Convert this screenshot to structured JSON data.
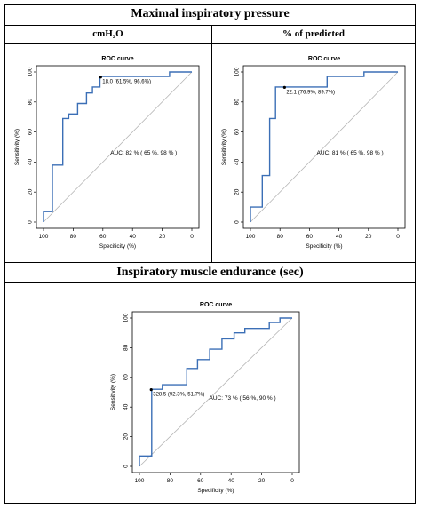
{
  "headers": {
    "section1_title": "Maximal inspiratory pressure",
    "col1_title": "cmH₂O",
    "col2_title": "% of predicted",
    "section2_title": "Inspiratory muscle endurance (sec)"
  },
  "chart_data": [
    {
      "type": "line",
      "title": "ROC curve",
      "xlabel": "Specificity (%)",
      "ylabel": "Sensitivity (%)",
      "xlim": [
        100,
        0
      ],
      "ylim": [
        0,
        100
      ],
      "xticks": [
        100,
        80,
        60,
        40,
        20,
        0
      ],
      "yticks": [
        0,
        20,
        40,
        60,
        80,
        100
      ],
      "series": [
        {
          "color": "#3b6fb6",
          "x": [
            100,
            100,
            94,
            94,
            87,
            87,
            83,
            83,
            77,
            77,
            71,
            71,
            67,
            67,
            62,
            62,
            15,
            15,
            0
          ],
          "y": [
            0,
            7,
            7,
            38,
            38,
            69,
            69,
            72,
            72,
            79,
            79,
            86,
            86,
            90,
            90,
            97,
            97,
            100,
            100
          ]
        }
      ],
      "reference_line": true,
      "threshold": {
        "x": 61.5,
        "y": 96.6,
        "label": "18.0 (61.5%, 96.6%)"
      },
      "auc_label": "AUC:  82 % ( 65 %,  98 % )"
    },
    {
      "type": "line",
      "title": "ROC curve",
      "xlabel": "Specificity (%)",
      "ylabel": "Sensitivity (%)",
      "xlim": [
        100,
        0
      ],
      "ylim": [
        0,
        100
      ],
      "xticks": [
        100,
        80,
        60,
        40,
        20,
        0
      ],
      "yticks": [
        0,
        20,
        40,
        60,
        80,
        100
      ],
      "series": [
        {
          "color": "#3b6fb6",
          "x": [
            100,
            100,
            92,
            92,
            87,
            87,
            83,
            83,
            77,
            77,
            62,
            62,
            48,
            48,
            23,
            23,
            0
          ],
          "y": [
            0,
            10,
            10,
            31,
            31,
            69,
            69,
            90,
            90,
            90,
            90,
            90,
            90,
            97,
            97,
            100,
            100
          ]
        }
      ],
      "reference_line": true,
      "threshold": {
        "x": 76.9,
        "y": 89.7,
        "label": "22.1 (76.9%, 89.7%)"
      },
      "auc_label": "AUC:  81 % ( 65 %,  98 % )"
    },
    {
      "type": "line",
      "title": "ROC curve",
      "xlabel": "Specificity (%)",
      "ylabel": "Sensitivity (%)",
      "xlim": [
        100,
        0
      ],
      "ylim": [
        0,
        100
      ],
      "xticks": [
        100,
        80,
        60,
        40,
        20,
        0
      ],
      "yticks": [
        0,
        20,
        40,
        60,
        80,
        100
      ],
      "series": [
        {
          "color": "#3b6fb6",
          "x": [
            100,
            100,
            92,
            92,
            85,
            85,
            69,
            69,
            62,
            62,
            54,
            54,
            46,
            46,
            38,
            38,
            31,
            31,
            15,
            15,
            8,
            8,
            0
          ],
          "y": [
            0,
            7,
            7,
            52,
            52,
            55,
            55,
            66,
            66,
            72,
            72,
            79,
            79,
            86,
            86,
            90,
            90,
            93,
            93,
            97,
            97,
            100,
            100
          ]
        }
      ],
      "reference_line": true,
      "threshold": {
        "x": 92.3,
        "y": 51.7,
        "label": "328.5 (92.3%, 51.7%)"
      },
      "auc_label": "AUC:  73 % ( 56 %,  90 % )"
    }
  ]
}
